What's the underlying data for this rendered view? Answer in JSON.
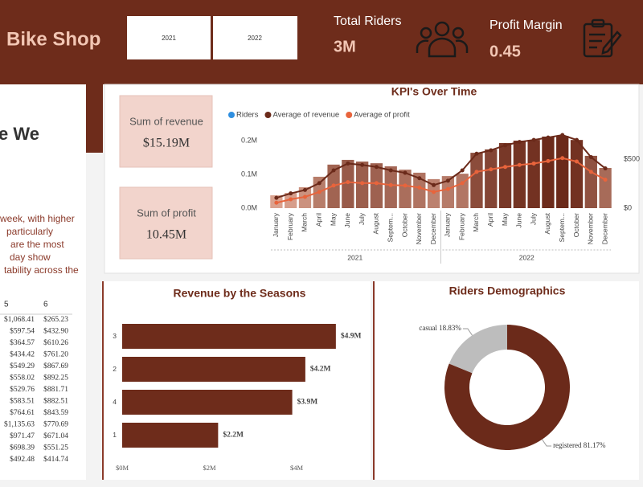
{
  "header": {
    "title": "Bike Shop",
    "slicers": [
      "2021",
      "2022"
    ],
    "kpis": [
      {
        "label": "Total Riders",
        "value": "3M"
      },
      {
        "label": "Profit Margin",
        "value": "0.45"
      }
    ]
  },
  "side_panel": {
    "heading": "e We",
    "text_lines": [
      "week, with higher",
      "particularly",
      "are the most",
      "day show",
      "tability across the"
    ],
    "table": {
      "columns": [
        "5",
        "6"
      ],
      "rows": [
        [
          "$1,068.41",
          "$265.23"
        ],
        [
          "$597.54",
          "$432.90"
        ],
        [
          "$364.57",
          "$610.26"
        ],
        [
          "$434.42",
          "$761.20"
        ],
        [
          "$549.29",
          "$867.69"
        ],
        [
          "$558.02",
          "$892.25"
        ],
        [
          "$529.76",
          "$881.71"
        ],
        [
          "$583.51",
          "$882.51"
        ],
        [
          "$764.61",
          "$843.59"
        ],
        [
          "$1,135.63",
          "$770.69"
        ],
        [
          "$971.47",
          "$671.04"
        ],
        [
          "$698.39",
          "$551.25"
        ],
        [
          "$492.48",
          "$414.74"
        ]
      ]
    }
  },
  "cards": [
    {
      "label": "Sum of revenue",
      "value": "$15.19M"
    },
    {
      "label": "Sum of profit",
      "value": "10.45M"
    }
  ],
  "chart_data": [
    {
      "type": "bar_line",
      "title": "KPI's Over Time",
      "categories": [
        "January",
        "February",
        "March",
        "April",
        "May",
        "June",
        "July",
        "August",
        "Septem...",
        "October",
        "November",
        "December",
        "January",
        "February",
        "March",
        "April",
        "May",
        "June",
        "July",
        "August",
        "Septem...",
        "October",
        "November",
        "December"
      ],
      "x_groups": [
        "2021",
        "2022"
      ],
      "series": [
        {
          "name": "Riders",
          "color": "#2f8fe0",
          "bar_color_range": [
            "#f2bca8",
            "#6b2a1a"
          ],
          "values": [
            0.038,
            0.045,
            0.062,
            0.093,
            0.129,
            0.143,
            0.138,
            0.133,
            0.124,
            0.114,
            0.105,
            0.086,
            0.095,
            0.102,
            0.164,
            0.174,
            0.193,
            0.2,
            0.202,
            0.212,
            0.214,
            0.202,
            0.155,
            0.119
          ]
        },
        {
          "name": "Average of revenue",
          "color": "#6b2a1a",
          "axis": "y2",
          "values": [
            105,
            150,
            185,
            255,
            385,
            455,
            440,
            420,
            385,
            360,
            305,
            235,
            280,
            385,
            555,
            590,
            640,
            675,
            695,
            720,
            745,
            695,
            520,
            405
          ]
        },
        {
          "name": "Average of profit",
          "color": "#e8643c",
          "axis": "y2",
          "values": [
            55,
            90,
            115,
            165,
            230,
            265,
            255,
            255,
            235,
            230,
            210,
            165,
            195,
            255,
            370,
            395,
            420,
            440,
            455,
            480,
            510,
            475,
            370,
            290
          ]
        }
      ],
      "ylim": [
        0,
        0.25
      ],
      "yticks": [
        {
          "value": 0,
          "label": "0.0M"
        },
        {
          "value": 0.1,
          "label": "0.1M"
        },
        {
          "value": 0.2,
          "label": "0.2M"
        }
      ],
      "y2lim": [
        0,
        860
      ],
      "y2ticks": [
        {
          "value": 0,
          "label": "$0"
        },
        {
          "value": 500,
          "label": "$500"
        }
      ],
      "grid": false
    },
    {
      "type": "hbar",
      "title": "Revenue by the Seasons",
      "categories": [
        "3",
        "2",
        "4",
        "1"
      ],
      "values": [
        4.9,
        4.2,
        3.9,
        2.2
      ],
      "value_labels": [
        "$4.9M",
        "$4.2M",
        "$3.9M",
        "$2.2M"
      ],
      "color": "#6e2c1b",
      "xlim": [
        0,
        5.4
      ],
      "xticks": [
        {
          "value": 0,
          "label": "$0M"
        },
        {
          "value": 2,
          "label": "$2M"
        },
        {
          "value": 4,
          "label": "$4M"
        }
      ]
    },
    {
      "type": "donut",
      "title": "Riders Demographics",
      "categories": [
        "registered",
        "casual"
      ],
      "values": [
        81.17,
        18.83
      ],
      "value_labels": [
        "81.17%",
        "18.83%"
      ],
      "colors": [
        "#6b2a1a",
        "#bdbdbd"
      ]
    }
  ]
}
